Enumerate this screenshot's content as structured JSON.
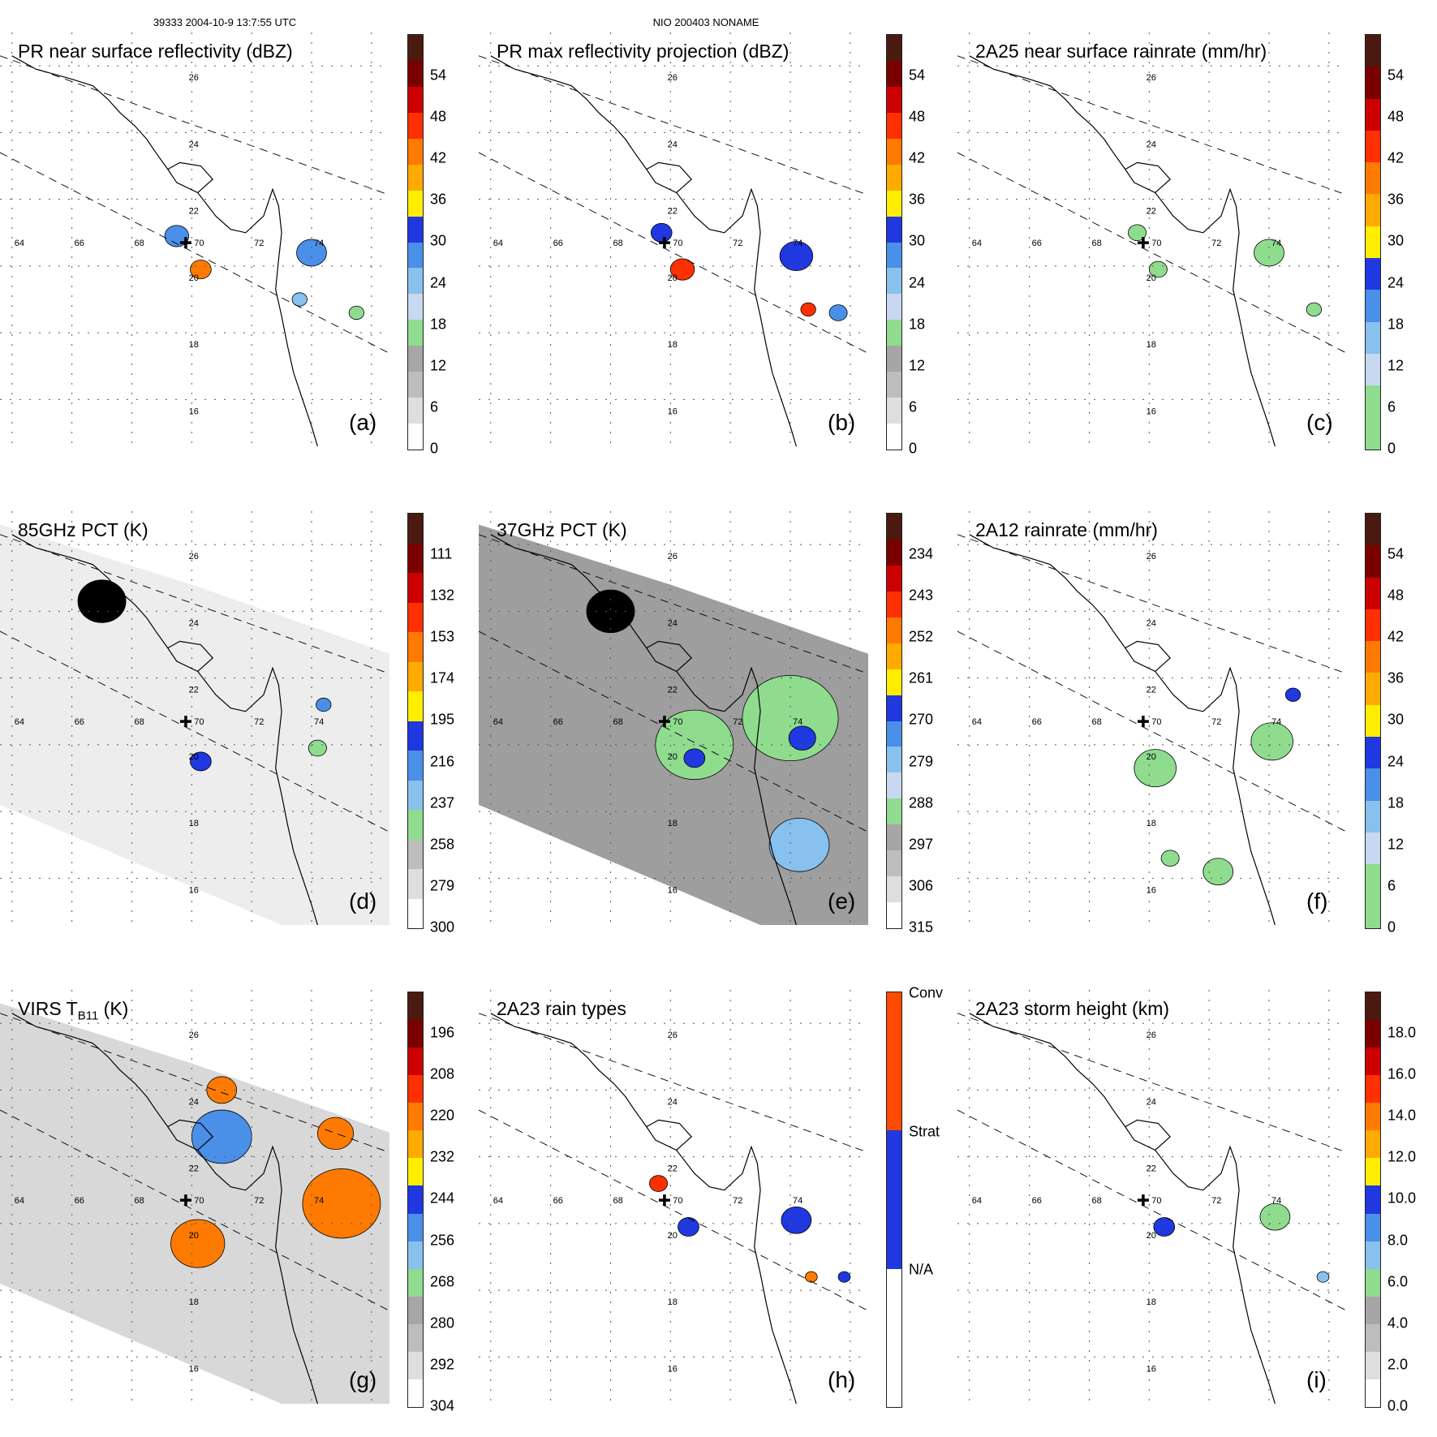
{
  "header": {
    "left": "39333 2004-10-9 13:7:55 UTC",
    "center": "NIO 200403 NONAME"
  },
  "map_labels": {
    "lons": [
      "64",
      "66",
      "68",
      "70",
      "72",
      "74"
    ],
    "lats": [
      "26",
      "24",
      "22",
      "20",
      "18",
      "16"
    ]
  },
  "panels": [
    {
      "id": "a",
      "title": "PR near surface reflectivity (dBZ)",
      "label": "(a)",
      "bg": "none",
      "colors": [
        "#ffffff",
        "#dedede",
        "#bdbdbd",
        "#a6a6a6",
        "#8fdc8f",
        "#c8d8f0",
        "#88c0ee",
        "#4a90e8",
        "#2038e0",
        "#ffee00",
        "#ffaa00",
        "#ff7a00",
        "#ff3000",
        "#cc0000",
        "#7a0000",
        "#4a1a10"
      ],
      "ticks": [
        "54",
        "48",
        "42",
        "36",
        "30",
        "24",
        "18",
        "12",
        "6",
        "0"
      ],
      "rain": [
        {
          "lon": 69.5,
          "lat": 20.9,
          "r": 0.4,
          "c": "#4a90e8"
        },
        {
          "lon": 70.3,
          "lat": 19.9,
          "r": 0.35,
          "c": "#ff7a00"
        },
        {
          "lon": 74.0,
          "lat": 20.4,
          "r": 0.5,
          "c": "#4a90e8"
        },
        {
          "lon": 73.6,
          "lat": 19.0,
          "r": 0.25,
          "c": "#88c0ee"
        },
        {
          "lon": 75.5,
          "lat": 18.6,
          "r": 0.25,
          "c": "#8fdc8f"
        }
      ]
    },
    {
      "id": "b",
      "title": "PR max reflectivity projection (dBZ)",
      "label": "(b)",
      "bg": "none",
      "colors": [
        "#ffffff",
        "#dedede",
        "#bdbdbd",
        "#a6a6a6",
        "#8fdc8f",
        "#c8d8f0",
        "#88c0ee",
        "#4a90e8",
        "#2038e0",
        "#ffee00",
        "#ffaa00",
        "#ff7a00",
        "#ff3000",
        "#cc0000",
        "#7a0000",
        "#4a1a10"
      ],
      "ticks": [
        "54",
        "48",
        "42",
        "36",
        "30",
        "24",
        "18",
        "12",
        "6",
        "0"
      ],
      "rain": [
        {
          "lon": 69.7,
          "lat": 21.0,
          "r": 0.35,
          "c": "#2038e0"
        },
        {
          "lon": 70.4,
          "lat": 19.9,
          "r": 0.4,
          "c": "#ff3000"
        },
        {
          "lon": 74.2,
          "lat": 20.3,
          "r": 0.55,
          "c": "#2038e0"
        },
        {
          "lon": 74.6,
          "lat": 18.7,
          "r": 0.25,
          "c": "#ff3000"
        },
        {
          "lon": 75.6,
          "lat": 18.6,
          "r": 0.3,
          "c": "#4a90e8"
        }
      ]
    },
    {
      "id": "c",
      "title": "2A25 near surface rainrate (mm/hr)",
      "label": "(c)",
      "bg": "none",
      "colors": [
        "#8fdc8f",
        "#8fdc8f",
        "#c8d8f0",
        "#88c0ee",
        "#4a90e8",
        "#2038e0",
        "#ffee00",
        "#ffaa00",
        "#ff7a00",
        "#ff3000",
        "#cc0000",
        "#7a0000",
        "#4a1a10"
      ],
      "ticks": [
        "54",
        "48",
        "42",
        "36",
        "30",
        "24",
        "18",
        "12",
        "6",
        "0"
      ],
      "rain": [
        {
          "lon": 69.6,
          "lat": 21.0,
          "r": 0.3,
          "c": "#8fdc8f"
        },
        {
          "lon": 70.3,
          "lat": 19.9,
          "r": 0.3,
          "c": "#8fdc8f"
        },
        {
          "lon": 74.0,
          "lat": 20.4,
          "r": 0.5,
          "c": "#8fdc8f"
        },
        {
          "lon": 75.5,
          "lat": 18.7,
          "r": 0.25,
          "c": "#8fdc8f"
        }
      ]
    },
    {
      "id": "d",
      "title": "85GHz PCT (K)",
      "label": "(d)",
      "bg": "#ededed",
      "colors": [
        "#ffffff",
        "#dedede",
        "#bdbdbd",
        "#8fdc8f",
        "#88c0ee",
        "#4a90e8",
        "#2038e0",
        "#ffee00",
        "#ffaa00",
        "#ff7a00",
        "#ff3000",
        "#cc0000",
        "#7a0000",
        "#4a1a10"
      ],
      "ticks": [
        "111",
        "132",
        "153",
        "174",
        "195",
        "216",
        "237",
        "258",
        "279",
        "300"
      ],
      "rain": [
        {
          "lon": 67.0,
          "lat": 24.3,
          "r": 0.8,
          "c": "#000000"
        },
        {
          "lon": 70.3,
          "lat": 19.5,
          "r": 0.35,
          "c": "#2038e0"
        },
        {
          "lon": 74.2,
          "lat": 19.9,
          "r": 0.3,
          "c": "#8fdc8f"
        },
        {
          "lon": 74.4,
          "lat": 21.2,
          "r": 0.25,
          "c": "#4a90e8"
        }
      ]
    },
    {
      "id": "e",
      "title": "37GHz PCT (K)",
      "label": "(e)",
      "bg": "#9e9e9e",
      "colors": [
        "#ffffff",
        "#dedede",
        "#bdbdbd",
        "#a6a6a6",
        "#8fdc8f",
        "#c8d8f0",
        "#88c0ee",
        "#4a90e8",
        "#2038e0",
        "#ffee00",
        "#ffaa00",
        "#ff7a00",
        "#ff3000",
        "#cc0000",
        "#7a0000",
        "#4a1a10"
      ],
      "ticks": [
        "234",
        "243",
        "252",
        "261",
        "270",
        "279",
        "288",
        "297",
        "306",
        "315"
      ],
      "rain": [
        {
          "lon": 70.8,
          "lat": 20.0,
          "r": 1.3,
          "c": "#8fdc8f"
        },
        {
          "lon": 74.0,
          "lat": 20.8,
          "r": 1.6,
          "c": "#8fdc8f"
        },
        {
          "lon": 70.8,
          "lat": 19.6,
          "r": 0.35,
          "c": "#2038e0"
        },
        {
          "lon": 74.4,
          "lat": 20.2,
          "r": 0.45,
          "c": "#2038e0"
        },
        {
          "lon": 68.0,
          "lat": 24.0,
          "r": 0.8,
          "c": "#000000"
        },
        {
          "lon": 74.3,
          "lat": 17.0,
          "r": 1.0,
          "c": "#88c0ee"
        }
      ]
    },
    {
      "id": "f",
      "title": "2A12 rainrate (mm/hr)",
      "label": "(f)",
      "bg": "none",
      "colors": [
        "#8fdc8f",
        "#8fdc8f",
        "#c8d8f0",
        "#88c0ee",
        "#4a90e8",
        "#2038e0",
        "#ffee00",
        "#ffaa00",
        "#ff7a00",
        "#ff3000",
        "#cc0000",
        "#7a0000",
        "#4a1a10"
      ],
      "ticks": [
        "54",
        "48",
        "42",
        "36",
        "30",
        "24",
        "18",
        "12",
        "6",
        "0"
      ],
      "rain": [
        {
          "lon": 70.2,
          "lat": 19.3,
          "r": 0.7,
          "c": "#8fdc8f"
        },
        {
          "lon": 74.1,
          "lat": 20.1,
          "r": 0.7,
          "c": "#8fdc8f"
        },
        {
          "lon": 72.3,
          "lat": 16.2,
          "r": 0.5,
          "c": "#8fdc8f"
        },
        {
          "lon": 70.7,
          "lat": 16.6,
          "r": 0.3,
          "c": "#8fdc8f"
        },
        {
          "lon": 74.8,
          "lat": 21.5,
          "r": 0.25,
          "c": "#2038e0"
        }
      ]
    },
    {
      "id": "g",
      "title": "VIRS T",
      "sub": "B11",
      "title_after": " (K)",
      "label": "(g)",
      "bg": "#d8d8d8",
      "colors": [
        "#ffffff",
        "#dedede",
        "#bdbdbd",
        "#a6a6a6",
        "#8fdc8f",
        "#88c0ee",
        "#4a90e8",
        "#2038e0",
        "#ffee00",
        "#ffaa00",
        "#ff7a00",
        "#ff3000",
        "#cc0000",
        "#7a0000",
        "#4a1a10"
      ],
      "ticks": [
        "196",
        "208",
        "220",
        "232",
        "244",
        "256",
        "268",
        "280",
        "292",
        "304"
      ],
      "rain": [
        {
          "lon": 70.2,
          "lat": 19.4,
          "r": 0.9,
          "c": "#ff7a00"
        },
        {
          "lon": 71.0,
          "lat": 22.6,
          "r": 1.0,
          "c": "#4a90e8"
        },
        {
          "lon": 71.0,
          "lat": 24.0,
          "r": 0.5,
          "c": "#ff7a00"
        },
        {
          "lon": 75.0,
          "lat": 20.6,
          "r": 1.3,
          "c": "#ff7a00"
        },
        {
          "lon": 74.8,
          "lat": 22.7,
          "r": 0.6,
          "c": "#ff7a00"
        }
      ]
    },
    {
      "id": "h",
      "title": "2A23 rain types",
      "label": "(h)",
      "bg": "none",
      "colors": [
        "#ffffff",
        "#2038e0",
        "#ff4a00"
      ],
      "ticks": [
        "Conv",
        "Strat",
        "N/A"
      ],
      "rain": [
        {
          "lon": 69.6,
          "lat": 21.2,
          "r": 0.3,
          "c": "#ff3000"
        },
        {
          "lon": 70.6,
          "lat": 19.9,
          "r": 0.35,
          "c": "#2038e0"
        },
        {
          "lon": 74.2,
          "lat": 20.1,
          "r": 0.5,
          "c": "#2038e0"
        },
        {
          "lon": 74.7,
          "lat": 18.4,
          "r": 0.2,
          "c": "#ff7a00"
        },
        {
          "lon": 75.8,
          "lat": 18.4,
          "r": 0.2,
          "c": "#2038e0"
        }
      ]
    },
    {
      "id": "i",
      "title": "2A23 storm height (km)",
      "label": "(i)",
      "bg": "none",
      "colors": [
        "#ffffff",
        "#dedede",
        "#bdbdbd",
        "#a6a6a6",
        "#8fdc8f",
        "#88c0ee",
        "#4a90e8",
        "#2038e0",
        "#ffee00",
        "#ffaa00",
        "#ff7a00",
        "#ff3000",
        "#cc0000",
        "#7a0000",
        "#4a1a10"
      ],
      "ticks": [
        "18.0",
        "16.0",
        "14.0",
        "12.0",
        "10.0",
        "8.0",
        "6.0",
        "4.0",
        "2.0",
        "0.0"
      ],
      "rain": [
        {
          "lon": 70.5,
          "lat": 19.9,
          "r": 0.35,
          "c": "#2038e0"
        },
        {
          "lon": 74.2,
          "lat": 20.2,
          "r": 0.5,
          "c": "#8fdc8f"
        },
        {
          "lon": 75.8,
          "lat": 18.4,
          "r": 0.2,
          "c": "#88c0ee"
        }
      ]
    }
  ]
}
